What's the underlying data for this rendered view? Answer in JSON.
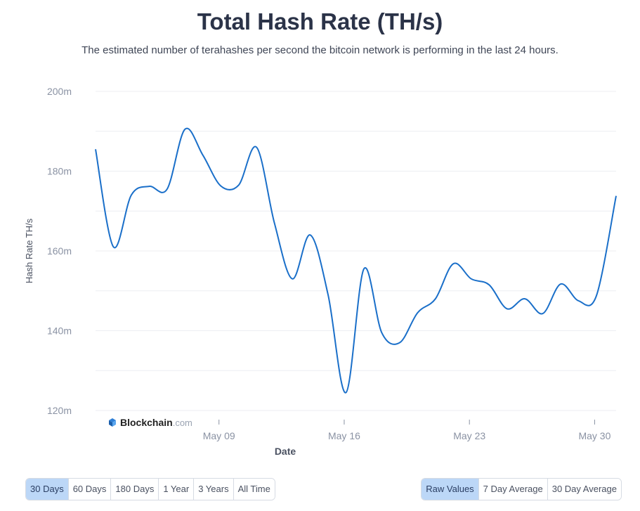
{
  "header": {
    "title": "Total Hash Rate (TH/s)",
    "subtitle": "The estimated number of terahashes per second the bitcoin network is performing in the last 24 hours."
  },
  "watermark": {
    "brand": "Blockchain",
    "suffix": ".com"
  },
  "chart_data": {
    "type": "line",
    "title": "Total Hash Rate (TH/s)",
    "xlabel": "Date",
    "ylabel": "Hash Rate TH/s",
    "ylim": [
      120,
      200
    ],
    "y_ticks": [
      "120m",
      "140m",
      "160m",
      "180m",
      "200m"
    ],
    "y_tick_values": [
      120,
      140,
      160,
      180,
      200
    ],
    "x_ticks": [
      "May 09",
      "May 16",
      "May 23",
      "May 30"
    ],
    "x_tick_values": [
      6.9,
      13.9,
      20.9,
      27.9
    ],
    "xlim": [
      0,
      29.1
    ],
    "grid": true,
    "color": "#1a6fc9",
    "series": [
      {
        "x": [
          0,
          1,
          2,
          3,
          4,
          5,
          6,
          7,
          8,
          9,
          10,
          11,
          12,
          13,
          14,
          15,
          16,
          17,
          18,
          19,
          20,
          21,
          22,
          23,
          24,
          25,
          26,
          27,
          28,
          29.1
        ],
        "values": [
          185.5,
          161.0,
          174.0,
          176.2,
          175.5,
          190.5,
          184.0,
          176.3,
          176.5,
          186.0,
          167.0,
          153.0,
          164.0,
          149.0,
          124.5,
          155.5,
          139.5,
          137.0,
          144.5,
          148.0,
          156.8,
          153.0,
          151.5,
          145.5,
          148.0,
          144.3,
          151.7,
          147.5,
          148.8,
          173.8
        ]
      }
    ]
  },
  "controls": {
    "range": [
      {
        "label": "30 Days",
        "active": true
      },
      {
        "label": "60 Days",
        "active": false
      },
      {
        "label": "180 Days",
        "active": false
      },
      {
        "label": "1 Year",
        "active": false
      },
      {
        "label": "3 Years",
        "active": false
      },
      {
        "label": "All Time",
        "active": false
      }
    ],
    "smoothing": [
      {
        "label": "Raw Values",
        "active": true
      },
      {
        "label": "7 Day Average",
        "active": false
      },
      {
        "label": "30 Day Average",
        "active": false
      }
    ]
  }
}
